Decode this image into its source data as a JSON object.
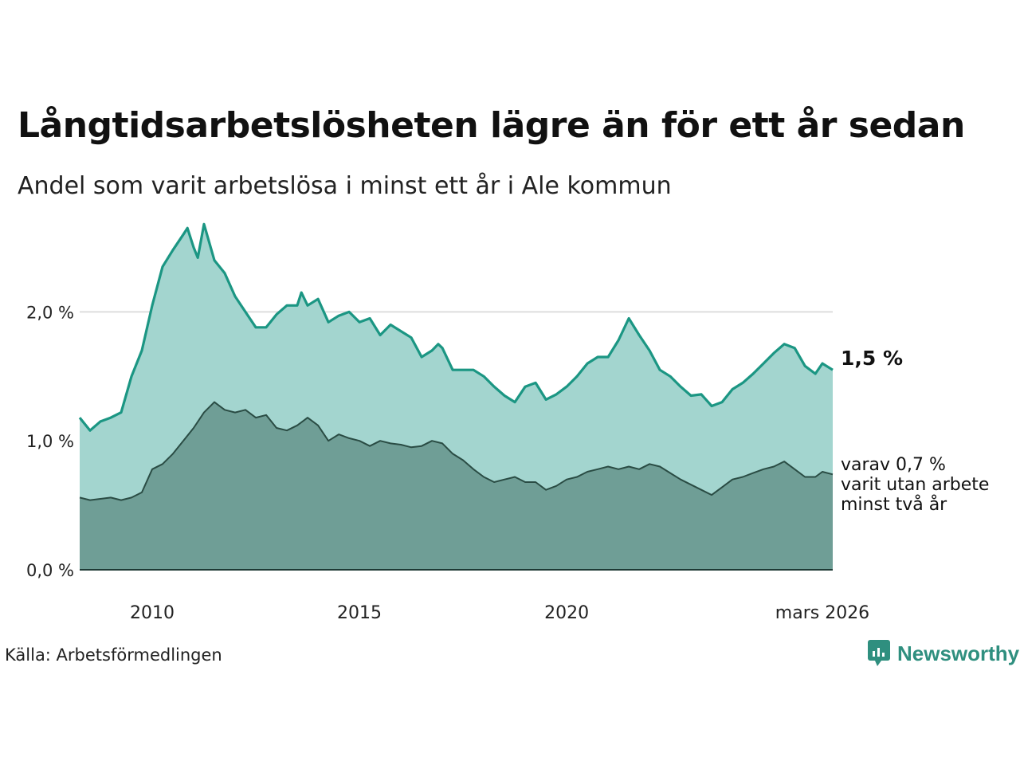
{
  "title": "Långtidsarbetslösheten lägre än för ett år sedan",
  "subtitle": "Andel som varit arbetslösa i minst ett år i Ale kommun",
  "source": "Källa: Arbetsförmedlingen",
  "brand": "Newsworthy",
  "colors": {
    "total_line": "#1b9683",
    "total_fill": "#a3d5cf",
    "sub_line": "#2a4c44",
    "sub_fill": "#6f9e96",
    "grid": "#dddddd"
  },
  "chart_data": {
    "type": "area",
    "title": "Långtidsarbetslösheten lägre än för ett år sedan",
    "unit": "%",
    "ylim": [
      0,
      2.75
    ],
    "yticks": [
      {
        "value": 0,
        "label": "0,0 %"
      },
      {
        "value": 1,
        "label": "1,0 %"
      },
      {
        "value": 2,
        "label": "2,0 %"
      }
    ],
    "xlim": [
      2008.25,
      2026.42
    ],
    "xticks": [
      {
        "value": 2010.0,
        "label": "2010"
      },
      {
        "value": 2015.0,
        "label": "2015"
      },
      {
        "value": 2020.0,
        "label": "2020"
      },
      {
        "value": 2026.17,
        "label": "mars 2026"
      }
    ],
    "series": [
      {
        "name": "Minst ett år",
        "end_label": "1,5 %",
        "points": [
          [
            2008.25,
            1.18
          ],
          [
            2008.5,
            1.08
          ],
          [
            2008.75,
            1.15
          ],
          [
            2009.0,
            1.18
          ],
          [
            2009.25,
            1.22
          ],
          [
            2009.5,
            1.5
          ],
          [
            2009.75,
            1.7
          ],
          [
            2010.0,
            2.05
          ],
          [
            2010.25,
            2.35
          ],
          [
            2010.5,
            2.48
          ],
          [
            2010.75,
            2.6
          ],
          [
            2010.85,
            2.65
          ],
          [
            2011.0,
            2.5
          ],
          [
            2011.1,
            2.42
          ],
          [
            2011.25,
            2.68
          ],
          [
            2011.5,
            2.4
          ],
          [
            2011.75,
            2.3
          ],
          [
            2012.0,
            2.12
          ],
          [
            2012.25,
            2.0
          ],
          [
            2012.5,
            1.88
          ],
          [
            2012.75,
            1.88
          ],
          [
            2013.0,
            1.98
          ],
          [
            2013.25,
            2.05
          ],
          [
            2013.5,
            2.05
          ],
          [
            2013.6,
            2.15
          ],
          [
            2013.75,
            2.05
          ],
          [
            2014.0,
            2.1
          ],
          [
            2014.25,
            1.92
          ],
          [
            2014.5,
            1.97
          ],
          [
            2014.75,
            2.0
          ],
          [
            2015.0,
            1.92
          ],
          [
            2015.25,
            1.95
          ],
          [
            2015.5,
            1.82
          ],
          [
            2015.75,
            1.9
          ],
          [
            2016.0,
            1.85
          ],
          [
            2016.25,
            1.8
          ],
          [
            2016.5,
            1.65
          ],
          [
            2016.75,
            1.7
          ],
          [
            2016.9,
            1.75
          ],
          [
            2017.0,
            1.72
          ],
          [
            2017.25,
            1.55
          ],
          [
            2017.5,
            1.55
          ],
          [
            2017.75,
            1.55
          ],
          [
            2018.0,
            1.5
          ],
          [
            2018.25,
            1.42
          ],
          [
            2018.5,
            1.35
          ],
          [
            2018.75,
            1.3
          ],
          [
            2019.0,
            1.42
          ],
          [
            2019.25,
            1.45
          ],
          [
            2019.5,
            1.32
          ],
          [
            2019.75,
            1.36
          ],
          [
            2020.0,
            1.42
          ],
          [
            2020.25,
            1.5
          ],
          [
            2020.5,
            1.6
          ],
          [
            2020.75,
            1.65
          ],
          [
            2021.0,
            1.65
          ],
          [
            2021.25,
            1.78
          ],
          [
            2021.5,
            1.95
          ],
          [
            2021.75,
            1.82
          ],
          [
            2022.0,
            1.7
          ],
          [
            2022.25,
            1.55
          ],
          [
            2022.5,
            1.5
          ],
          [
            2022.75,
            1.42
          ],
          [
            2023.0,
            1.35
          ],
          [
            2023.25,
            1.36
          ],
          [
            2023.5,
            1.27
          ],
          [
            2023.75,
            1.3
          ],
          [
            2024.0,
            1.4
          ],
          [
            2024.25,
            1.45
          ],
          [
            2024.5,
            1.52
          ],
          [
            2024.75,
            1.6
          ],
          [
            2025.0,
            1.68
          ],
          [
            2025.25,
            1.75
          ],
          [
            2025.5,
            1.72
          ],
          [
            2025.75,
            1.58
          ],
          [
            2026.0,
            1.52
          ],
          [
            2026.17,
            1.6
          ],
          [
            2026.42,
            1.55
          ]
        ]
      },
      {
        "name": "varav minst två år",
        "end_label_lines": [
          "varav 0,7 %",
          "varit utan arbete",
          "minst två år"
        ],
        "points": [
          [
            2008.25,
            0.56
          ],
          [
            2008.5,
            0.54
          ],
          [
            2008.75,
            0.55
          ],
          [
            2009.0,
            0.56
          ],
          [
            2009.25,
            0.54
          ],
          [
            2009.5,
            0.56
          ],
          [
            2009.75,
            0.6
          ],
          [
            2010.0,
            0.78
          ],
          [
            2010.25,
            0.82
          ],
          [
            2010.5,
            0.9
          ],
          [
            2010.75,
            1.0
          ],
          [
            2011.0,
            1.1
          ],
          [
            2011.25,
            1.22
          ],
          [
            2011.5,
            1.3
          ],
          [
            2011.75,
            1.24
          ],
          [
            2012.0,
            1.22
          ],
          [
            2012.25,
            1.24
          ],
          [
            2012.5,
            1.18
          ],
          [
            2012.75,
            1.2
          ],
          [
            2013.0,
            1.1
          ],
          [
            2013.25,
            1.08
          ],
          [
            2013.5,
            1.12
          ],
          [
            2013.75,
            1.18
          ],
          [
            2014.0,
            1.12
          ],
          [
            2014.25,
            1.0
          ],
          [
            2014.5,
            1.05
          ],
          [
            2014.75,
            1.02
          ],
          [
            2015.0,
            1.0
          ],
          [
            2015.25,
            0.96
          ],
          [
            2015.5,
            1.0
          ],
          [
            2015.75,
            0.98
          ],
          [
            2016.0,
            0.97
          ],
          [
            2016.25,
            0.95
          ],
          [
            2016.5,
            0.96
          ],
          [
            2016.75,
            1.0
          ],
          [
            2017.0,
            0.98
          ],
          [
            2017.25,
            0.9
          ],
          [
            2017.5,
            0.85
          ],
          [
            2017.75,
            0.78
          ],
          [
            2018.0,
            0.72
          ],
          [
            2018.25,
            0.68
          ],
          [
            2018.5,
            0.7
          ],
          [
            2018.75,
            0.72
          ],
          [
            2019.0,
            0.68
          ],
          [
            2019.25,
            0.68
          ],
          [
            2019.5,
            0.62
          ],
          [
            2019.75,
            0.65
          ],
          [
            2020.0,
            0.7
          ],
          [
            2020.25,
            0.72
          ],
          [
            2020.5,
            0.76
          ],
          [
            2020.75,
            0.78
          ],
          [
            2021.0,
            0.8
          ],
          [
            2021.25,
            0.78
          ],
          [
            2021.5,
            0.8
          ],
          [
            2021.75,
            0.78
          ],
          [
            2022.0,
            0.82
          ],
          [
            2022.25,
            0.8
          ],
          [
            2022.5,
            0.75
          ],
          [
            2022.75,
            0.7
          ],
          [
            2023.0,
            0.66
          ],
          [
            2023.25,
            0.62
          ],
          [
            2023.5,
            0.58
          ],
          [
            2023.75,
            0.64
          ],
          [
            2024.0,
            0.7
          ],
          [
            2024.25,
            0.72
          ],
          [
            2024.5,
            0.75
          ],
          [
            2024.75,
            0.78
          ],
          [
            2025.0,
            0.8
          ],
          [
            2025.25,
            0.84
          ],
          [
            2025.5,
            0.78
          ],
          [
            2025.75,
            0.72
          ],
          [
            2026.0,
            0.72
          ],
          [
            2026.17,
            0.76
          ],
          [
            2026.42,
            0.74
          ]
        ]
      }
    ]
  }
}
